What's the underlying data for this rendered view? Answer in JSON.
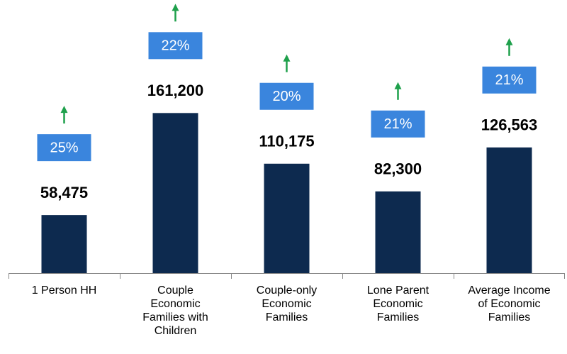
{
  "chart_data": {
    "type": "bar",
    "categories": [
      "1 Person HH",
      "Couple Economic Families with Children",
      "Couple-only Economic Families",
      "Lone Parent Economic Families",
      "Average Income of Economic Families"
    ],
    "values": [
      58475,
      161200,
      110175,
      82300,
      126563
    ],
    "value_labels": [
      "58,475",
      "161,200",
      "110,175",
      "82,300",
      "126,563"
    ],
    "color": "#0d2a4f",
    "change": {
      "values": [
        25,
        22,
        20,
        21,
        21
      ],
      "value_labels": [
        "25%",
        "22%",
        "20%",
        "21%",
        "21%"
      ],
      "color": "#3a85dd",
      "arrow_color": "#1ea04b"
    },
    "ylim": [
      0,
      275000
    ]
  }
}
